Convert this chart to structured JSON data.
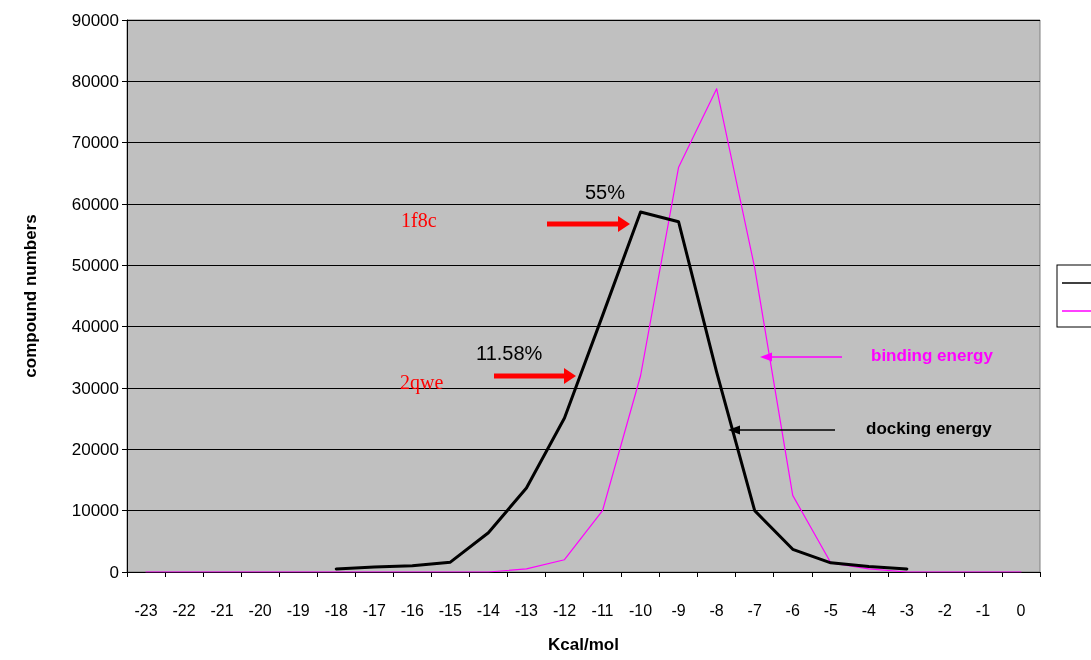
{
  "chart_data": {
    "type": "line",
    "xlabel": "Kcal/mol",
    "ylabel": "compound numbers",
    "categories": [
      "-23",
      "-22",
      "-21",
      "-20",
      "-19",
      "-18",
      "-17",
      "-16",
      "-15",
      "-14",
      "-13",
      "-12",
      "-11",
      "-10",
      "-9",
      "-8",
      "-7",
      "-6",
      "-5",
      "-4",
      "-3",
      "-2",
      "-1",
      "0"
    ],
    "series": [
      {
        "name": "docking energy",
        "color": "#000000",
        "values": [
          null,
          null,
          null,
          null,
          null,
          500,
          800,
          1000,
          1600,
          6400,
          13700,
          25100,
          41800,
          58700,
          57100,
          32600,
          10000,
          3700,
          1500,
          900,
          500,
          null,
          null,
          null
        ]
      },
      {
        "name": "binding energy",
        "color": "#ff00ff",
        "values": [
          0,
          0,
          0,
          0,
          0,
          0,
          0,
          0,
          0,
          0,
          500,
          2000,
          10000,
          32000,
          66000,
          78800,
          49600,
          12500,
          1500,
          500,
          0,
          0,
          0,
          0
        ]
      }
    ],
    "ylim": [
      0,
      90000
    ],
    "yticks": [
      0,
      10000,
      20000,
      30000,
      40000,
      50000,
      60000,
      70000,
      80000,
      90000
    ],
    "grid": "y",
    "legend": "right",
    "marker": "none",
    "line_style": "solid",
    "annotations": [
      "55%",
      "11.58%",
      "1f8c",
      "2qwe"
    ]
  }
}
